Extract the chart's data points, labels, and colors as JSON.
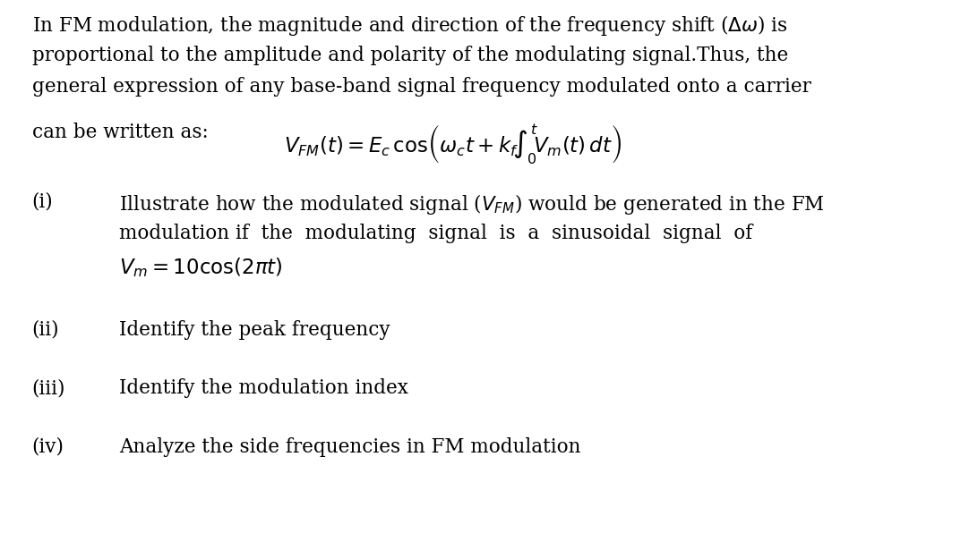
{
  "background_color": "#ffffff",
  "text_color": "#000000",
  "figsize": [
    10.82,
    5.96
  ],
  "dpi": 100,
  "para1_line1": "In FM modulation, the magnitude and direction of the frequency shift ($\\Delta\\omega$) is",
  "para1_line2": "proportional to the amplitude and polarity of the modulating signal.Thus, the",
  "para1_line3": "general expression of any base-band signal frequency modulated onto a carrier",
  "font_size_body": 15.5,
  "font_size_math": 15.5,
  "font_family": "DejaVu Serif"
}
